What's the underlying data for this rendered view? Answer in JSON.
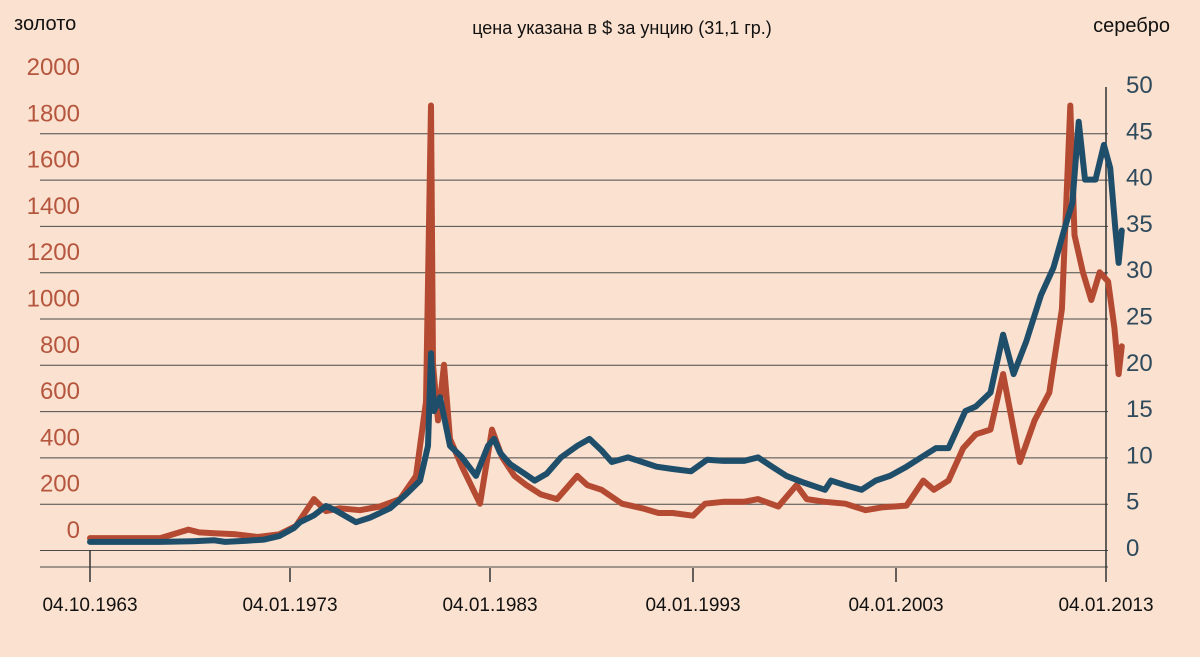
{
  "chart_data": {
    "type": "line",
    "title": "цена указана в $ за унцию (31,1 гр.)",
    "ylabel_left": "золото",
    "ylabel_right": "серебро",
    "x_ticks": [
      "04.10.1963",
      "04.01.1973",
      "04.01.1983",
      "04.01.1993",
      "04.01.2003",
      "04.01.2013"
    ],
    "y_left_ticks": [
      "2000",
      "1800",
      "1600",
      "1400",
      "1200",
      "1000",
      "800",
      "600",
      "400",
      "200",
      "0"
    ],
    "y_right_ticks": [
      "50",
      "45",
      "40",
      "35",
      "30",
      "25",
      "20",
      "15",
      "10",
      "5",
      "0"
    ],
    "ylim_left": [
      0,
      2000
    ],
    "ylim_right": [
      0,
      50
    ],
    "xlim": [
      1963.75,
      2013.0
    ],
    "grid": true,
    "colors": {
      "gold": "#1f4e6b",
      "silver": "#b54a32",
      "gridline": "#4a4a4a"
    },
    "series": [
      {
        "key": "gold",
        "axis": "left",
        "color": "#1f4e6b",
        "points": [
          [
            1963.75,
            35
          ],
          [
            1965,
            35
          ],
          [
            1967,
            35
          ],
          [
            1968.5,
            38
          ],
          [
            1969.5,
            42
          ],
          [
            1970,
            35
          ],
          [
            1971,
            40
          ],
          [
            1971.8,
            45
          ],
          [
            1972.5,
            60
          ],
          [
            1973.2,
            95
          ],
          [
            1973.5,
            120
          ],
          [
            1974.2,
            150
          ],
          [
            1974.8,
            190
          ],
          [
            1975.3,
            170
          ],
          [
            1976.3,
            120
          ],
          [
            1977,
            140
          ],
          [
            1978,
            180
          ],
          [
            1978.8,
            240
          ],
          [
            1979.5,
            300
          ],
          [
            1979.9,
            450
          ],
          [
            1980.05,
            850
          ],
          [
            1980.2,
            600
          ],
          [
            1980.5,
            660
          ],
          [
            1981,
            450
          ],
          [
            1981.6,
            400
          ],
          [
            1982.3,
            320
          ],
          [
            1982.9,
            450
          ],
          [
            1983.2,
            480
          ],
          [
            1983.5,
            420
          ],
          [
            1984,
            370
          ],
          [
            1984.7,
            330
          ],
          [
            1985.2,
            300
          ],
          [
            1985.8,
            330
          ],
          [
            1986.5,
            400
          ],
          [
            1987.3,
            450
          ],
          [
            1987.9,
            480
          ],
          [
            1988.5,
            430
          ],
          [
            1989,
            380
          ],
          [
            1989.8,
            400
          ],
          [
            1990.5,
            380
          ],
          [
            1991.2,
            360
          ],
          [
            1992,
            350
          ],
          [
            1992.9,
            340
          ],
          [
            1993.7,
            390
          ],
          [
            1994.5,
            385
          ],
          [
            1995.5,
            385
          ],
          [
            1996.2,
            400
          ],
          [
            1996.9,
            360
          ],
          [
            1997.6,
            320
          ],
          [
            1998.5,
            290
          ],
          [
            1999.5,
            260
          ],
          [
            1999.8,
            300
          ],
          [
            2000.5,
            280
          ],
          [
            2001.3,
            260
          ],
          [
            2002,
            300
          ],
          [
            2002.7,
            320
          ],
          [
            2003.5,
            360
          ],
          [
            2004.2,
            400
          ],
          [
            2004.9,
            440
          ],
          [
            2005.5,
            440
          ],
          [
            2006.3,
            600
          ],
          [
            2006.8,
            620
          ],
          [
            2007.5,
            680
          ],
          [
            2008.1,
            930
          ],
          [
            2008.6,
            760
          ],
          [
            2009.2,
            900
          ],
          [
            2009.9,
            1100
          ],
          [
            2010.5,
            1220
          ],
          [
            2011.0,
            1380
          ],
          [
            2011.4,
            1500
          ],
          [
            2011.7,
            1850
          ],
          [
            2012.0,
            1600
          ],
          [
            2012.5,
            1600
          ],
          [
            2012.9,
            1750
          ],
          [
            2013.2,
            1650
          ],
          [
            2013.45,
            1380
          ],
          [
            2013.6,
            1240
          ],
          [
            2013.75,
            1380
          ]
        ]
      },
      {
        "key": "silver",
        "axis": "right",
        "color": "#b54a32",
        "points": [
          [
            1963.75,
            1.29
          ],
          [
            1965,
            1.29
          ],
          [
            1967,
            1.29
          ],
          [
            1968.3,
            2.2
          ],
          [
            1968.8,
            1.9
          ],
          [
            1969.5,
            1.8
          ],
          [
            1970.5,
            1.7
          ],
          [
            1971.5,
            1.4
          ],
          [
            1972.5,
            1.7
          ],
          [
            1973.3,
            2.6
          ],
          [
            1974.2,
            5.5
          ],
          [
            1974.8,
            4.2
          ],
          [
            1975.5,
            4.5
          ],
          [
            1976.5,
            4.3
          ],
          [
            1977.5,
            4.7
          ],
          [
            1978.5,
            5.5
          ],
          [
            1979.3,
            8.0
          ],
          [
            1979.8,
            16.0
          ],
          [
            1980.05,
            48.0
          ],
          [
            1980.15,
            20.0
          ],
          [
            1980.4,
            14.0
          ],
          [
            1980.7,
            20.0
          ],
          [
            1981,
            12.0
          ],
          [
            1981.6,
            9.0
          ],
          [
            1982.5,
            5.0
          ],
          [
            1983.1,
            13.0
          ],
          [
            1983.6,
            10.0
          ],
          [
            1984.2,
            8.0
          ],
          [
            1984.8,
            7.0
          ],
          [
            1985.5,
            6.0
          ],
          [
            1986.3,
            5.5
          ],
          [
            1987.3,
            8.0
          ],
          [
            1987.8,
            7.0
          ],
          [
            1988.5,
            6.5
          ],
          [
            1989.5,
            5.0
          ],
          [
            1990.5,
            4.5
          ],
          [
            1991.3,
            4.0
          ],
          [
            1992,
            4.0
          ],
          [
            1993,
            3.7
          ],
          [
            1993.6,
            5.0
          ],
          [
            1994.5,
            5.2
          ],
          [
            1995.5,
            5.2
          ],
          [
            1996.2,
            5.5
          ],
          [
            1997.2,
            4.7
          ],
          [
            1998.1,
            7.0
          ],
          [
            1998.6,
            5.5
          ],
          [
            1999.5,
            5.2
          ],
          [
            2000.5,
            5.0
          ],
          [
            2001.5,
            4.3
          ],
          [
            2002.3,
            4.6
          ],
          [
            2003.5,
            4.8
          ],
          [
            2004.3,
            7.5
          ],
          [
            2004.8,
            6.5
          ],
          [
            2005.5,
            7.5
          ],
          [
            2006.2,
            11.0
          ],
          [
            2006.8,
            12.5
          ],
          [
            2007.5,
            13.0
          ],
          [
            2008.1,
            19.0
          ],
          [
            2008.9,
            9.5
          ],
          [
            2009.6,
            14.0
          ],
          [
            2010.3,
            17.0
          ],
          [
            2010.9,
            26.0
          ],
          [
            2011.3,
            48.0
          ],
          [
            2011.5,
            34.0
          ],
          [
            2011.9,
            30.0
          ],
          [
            2012.3,
            27.0
          ],
          [
            2012.7,
            30.0
          ],
          [
            2013.1,
            29.0
          ],
          [
            2013.4,
            24.0
          ],
          [
            2013.6,
            19.0
          ],
          [
            2013.75,
            22.0
          ]
        ]
      }
    ]
  }
}
